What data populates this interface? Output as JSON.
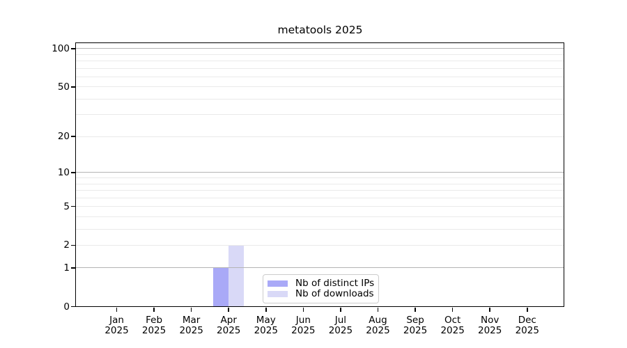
{
  "figure": {
    "background": "#ffffff"
  },
  "chart_data": {
    "type": "bar",
    "title": "metatools 2025",
    "categories": [
      "Jan",
      "Feb",
      "Mar",
      "Apr",
      "May",
      "Jun",
      "Jul",
      "Aug",
      "Sep",
      "Oct",
      "Nov",
      "Dec"
    ],
    "x_year_label": "2025",
    "series": [
      {
        "name": "Nb of distinct IPs",
        "color": "#a9a9f7",
        "values": [
          0,
          0,
          0,
          1,
          0,
          0,
          0,
          0,
          0,
          0,
          0,
          0
        ]
      },
      {
        "name": "Nb of downloads",
        "color": "#d9d9f7",
        "values": [
          0,
          0,
          0,
          2,
          0,
          0,
          0,
          0,
          0,
          0,
          0,
          0
        ]
      }
    ],
    "y_scale": "log1p",
    "ylim": [
      0,
      116
    ],
    "y_ticks": [
      0,
      1,
      2,
      5,
      10,
      20,
      50,
      100
    ],
    "y_major_gridlines": [
      1,
      10,
      100
    ],
    "y_minor_gridlines": [
      2,
      3,
      4,
      5,
      6,
      7,
      8,
      9,
      20,
      30,
      40,
      50,
      60,
      70,
      80,
      90
    ],
    "grid": true,
    "legend_position": "lower-center",
    "colors": {
      "major_grid": "#b4b4b4",
      "minor_grid": "#eaeaea",
      "axis": "#000000",
      "text": "#000000"
    }
  }
}
